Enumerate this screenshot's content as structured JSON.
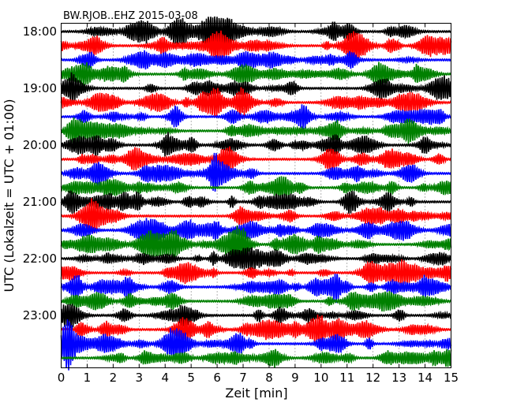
{
  "chart_data": {
    "type": "line",
    "title": "BW.RJOB..EHZ 2015-03-08",
    "xlabel": "Zeit  [min]",
    "ylabel": "UTC (Lokalzeit = UTC + 01:00)",
    "xlim": [
      0,
      15
    ],
    "x_ticks": [
      "0",
      "1",
      "2",
      "3",
      "4",
      "5",
      "6",
      "7",
      "8",
      "9",
      "10",
      "11",
      "12",
      "13",
      "14",
      "15"
    ],
    "y_ticks": [
      "18:00",
      "19:00",
      "20:00",
      "21:00",
      "22:00",
      "23:00"
    ],
    "traces_per_hour": 4,
    "trace_start": "18:00",
    "trace_count": 24,
    "trace_colors": [
      "#000000",
      "#ff0000",
      "#0000ff",
      "#008000"
    ],
    "grid": "vertical dotted at each minute"
  }
}
